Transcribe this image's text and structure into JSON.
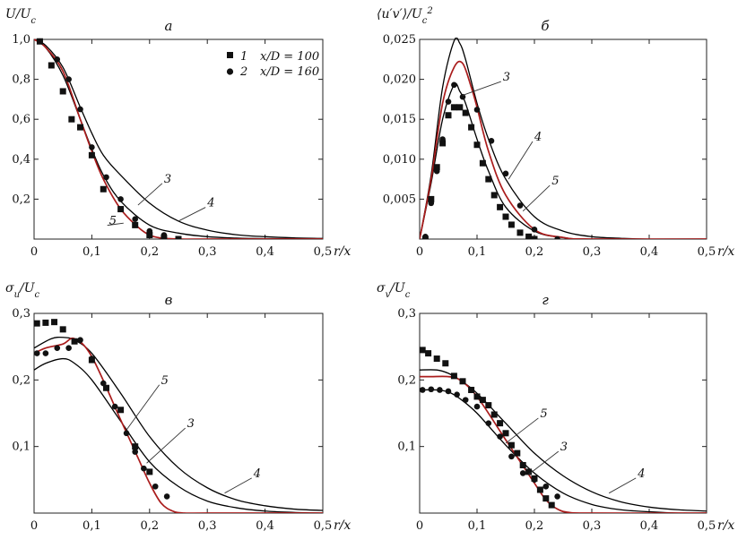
{
  "legend": {
    "entries": [
      {
        "symbol": "square",
        "num": "1",
        "text": "x/D = 100"
      },
      {
        "symbol": "circle",
        "num": "2",
        "text": "x/D = 160"
      }
    ]
  },
  "chart_data": [
    {
      "type": "line",
      "panel": "а",
      "ylabel": "U/Uc",
      "xlabel": "r/x",
      "xlim": [
        0,
        0.5
      ],
      "ylim": [
        0,
        1.0
      ],
      "xticks": [
        0,
        0.1,
        0.2,
        0.3,
        0.4,
        0.5
      ],
      "xtick_labels": [
        "0",
        "0,1",
        "0,2",
        "0,3",
        "0,4",
        "0,5"
      ],
      "yticks": [
        0.2,
        0.4,
        0.6,
        0.8,
        1.0
      ],
      "ytick_labels": [
        "0,2",
        "0,4",
        "0,6",
        "0,8",
        "1,0"
      ],
      "series": [
        {
          "name": "4",
          "color": "#000000",
          "x": [
            0,
            0.02,
            0.05,
            0.08,
            0.1,
            0.12,
            0.15,
            0.2,
            0.25,
            0.3,
            0.35,
            0.4,
            0.45,
            0.5
          ],
          "y": [
            1.0,
            0.97,
            0.86,
            0.66,
            0.53,
            0.42,
            0.32,
            0.18,
            0.09,
            0.045,
            0.022,
            0.012,
            0.006,
            0.003
          ]
        },
        {
          "name": "3",
          "color": "#000000",
          "x": [
            0,
            0.02,
            0.05,
            0.08,
            0.1,
            0.12,
            0.15,
            0.2,
            0.25,
            0.3,
            0.35,
            0.4,
            0.5
          ],
          "y": [
            1.0,
            0.96,
            0.82,
            0.6,
            0.45,
            0.32,
            0.19,
            0.07,
            0.03,
            0.012,
            0.005,
            0.002,
            0.0
          ]
        },
        {
          "name": "5",
          "color": "#aa1c1c",
          "x": [
            0,
            0.02,
            0.05,
            0.08,
            0.1,
            0.12,
            0.15,
            0.18,
            0.2,
            0.22,
            0.25,
            0.3,
            0.5
          ],
          "y": [
            1.0,
            0.96,
            0.84,
            0.6,
            0.44,
            0.3,
            0.15,
            0.06,
            0.02,
            0.005,
            0.0,
            0.0,
            0.0
          ]
        },
        {
          "name": "1",
          "marker": "square",
          "x": [
            0.01,
            0.03,
            0.05,
            0.065,
            0.08,
            0.1,
            0.12,
            0.15,
            0.175,
            0.2,
            0.225,
            0.25
          ],
          "y": [
            0.99,
            0.87,
            0.74,
            0.6,
            0.56,
            0.42,
            0.25,
            0.15,
            0.07,
            0.02,
            0.005,
            0.0
          ]
        },
        {
          "name": "2",
          "marker": "circle",
          "x": [
            0.01,
            0.04,
            0.06,
            0.08,
            0.1,
            0.125,
            0.15,
            0.175,
            0.2,
            0.225
          ],
          "y": [
            0.99,
            0.9,
            0.8,
            0.65,
            0.46,
            0.31,
            0.2,
            0.1,
            0.04,
            0.02
          ]
        }
      ],
      "curve_labels": [
        {
          "text": "3",
          "label_at": [
            0.225,
            0.27
          ],
          "point_at": [
            0.18,
            0.17
          ]
        },
        {
          "text": "4",
          "label_at": [
            0.3,
            0.15
          ],
          "point_at": [
            0.25,
            0.09
          ]
        },
        {
          "text": "5",
          "label_at": [
            0.13,
            0.06
          ],
          "point_at": [
            0.155,
            0.08
          ]
        }
      ]
    },
    {
      "type": "line",
      "panel": "б",
      "ylabel": "⟨u′v′⟩/Uc²",
      "xlabel": "r/x",
      "xlim": [
        0,
        0.5
      ],
      "ylim": [
        0,
        0.025
      ],
      "xticks": [
        0,
        0.1,
        0.2,
        0.3,
        0.4,
        0.5
      ],
      "xtick_labels": [
        "0",
        "0,1",
        "0,2",
        "0,3",
        "0,4",
        "0,5"
      ],
      "yticks": [
        0.005,
        0.01,
        0.015,
        0.02,
        0.025
      ],
      "ytick_labels": [
        "0,005",
        "0,010",
        "0,015",
        "0,020",
        "0,025"
      ],
      "series": [
        {
          "name": "4",
          "color": "#000000",
          "x": [
            0,
            0.02,
            0.04,
            0.06,
            0.07,
            0.08,
            0.1,
            0.12,
            0.15,
            0.2,
            0.25,
            0.3,
            0.35,
            0.4,
            0.5
          ],
          "y": [
            0,
            0.008,
            0.019,
            0.0248,
            0.0245,
            0.0225,
            0.017,
            0.0125,
            0.0075,
            0.0028,
            0.001,
            0.0003,
            0.0001,
            0,
            0
          ]
        },
        {
          "name": "3",
          "color": "#000000",
          "x": [
            0,
            0.02,
            0.04,
            0.06,
            0.07,
            0.08,
            0.1,
            0.12,
            0.15,
            0.2,
            0.25,
            0.3,
            0.5
          ],
          "y": [
            0,
            0.007,
            0.015,
            0.0193,
            0.0185,
            0.017,
            0.0125,
            0.0085,
            0.004,
            0.001,
            0.0002,
            0,
            0
          ]
        },
        {
          "name": "5",
          "color": "#aa1c1c",
          "x": [
            0,
            0.02,
            0.04,
            0.06,
            0.075,
            0.09,
            0.1,
            0.12,
            0.15,
            0.2,
            0.25,
            0.3,
            0.5
          ],
          "y": [
            0,
            0.0075,
            0.017,
            0.0215,
            0.022,
            0.019,
            0.0165,
            0.011,
            0.0055,
            0.0012,
            0.0002,
            0,
            0
          ]
        },
        {
          "name": "1",
          "marker": "square",
          "x": [
            0.01,
            0.02,
            0.03,
            0.04,
            0.05,
            0.06,
            0.07,
            0.08,
            0.09,
            0.1,
            0.11,
            0.12,
            0.13,
            0.14,
            0.15,
            0.16,
            0.175,
            0.19,
            0.2
          ],
          "y": [
            0,
            0.005,
            0.009,
            0.012,
            0.0155,
            0.0165,
            0.0165,
            0.0158,
            0.014,
            0.0118,
            0.0095,
            0.0075,
            0.0055,
            0.004,
            0.0028,
            0.0018,
            0.0008,
            0.0003,
            0
          ]
        },
        {
          "name": "2",
          "marker": "circle",
          "x": [
            0.01,
            0.02,
            0.03,
            0.04,
            0.05,
            0.06,
            0.075,
            0.1,
            0.125,
            0.15,
            0.175,
            0.2,
            0.24
          ],
          "y": [
            0.0003,
            0.0045,
            0.0085,
            0.0125,
            0.0172,
            0.0193,
            0.0178,
            0.0162,
            0.0123,
            0.0082,
            0.0042,
            0.0012,
            0
          ]
        }
      ],
      "curve_labels": [
        {
          "text": "3",
          "label_at": [
            0.145,
            0.0195
          ],
          "point_at": [
            0.075,
            0.018
          ]
        },
        {
          "text": "4",
          "label_at": [
            0.2,
            0.012
          ],
          "point_at": [
            0.155,
            0.0075
          ]
        },
        {
          "text": "5",
          "label_at": [
            0.23,
            0.0065
          ],
          "point_at": [
            0.18,
            0.0035
          ]
        }
      ]
    },
    {
      "type": "line",
      "panel": "в",
      "ylabel": "σu/Uc",
      "xlabel": "r/x",
      "xlim": [
        0,
        0.5
      ],
      "ylim": [
        0,
        0.3
      ],
      "xticks": [
        0,
        0.1,
        0.2,
        0.3,
        0.4,
        0.5
      ],
      "xtick_labels": [
        "0",
        "0,1",
        "0,2",
        "0,3",
        "0,4",
        "0,5"
      ],
      "yticks": [
        0.1,
        0.2,
        0.3
      ],
      "ytick_labels": [
        "0,1",
        "0,2",
        "0,3"
      ],
      "series": [
        {
          "name": "4",
          "color": "#000000",
          "x": [
            0,
            0.03,
            0.05,
            0.07,
            0.1,
            0.15,
            0.2,
            0.25,
            0.3,
            0.35,
            0.4,
            0.45,
            0.5
          ],
          "y": [
            0.248,
            0.262,
            0.264,
            0.26,
            0.24,
            0.18,
            0.115,
            0.068,
            0.038,
            0.02,
            0.011,
            0.006,
            0.004
          ]
        },
        {
          "name": "3",
          "color": "#000000",
          "x": [
            0,
            0.02,
            0.05,
            0.07,
            0.1,
            0.15,
            0.2,
            0.25,
            0.3,
            0.35,
            0.4,
            0.45,
            0.5
          ],
          "y": [
            0.215,
            0.225,
            0.232,
            0.225,
            0.2,
            0.138,
            0.077,
            0.04,
            0.018,
            0.008,
            0.003,
            0.001,
            0
          ]
        },
        {
          "name": "5",
          "color": "#aa1c1c",
          "x": [
            0,
            0.02,
            0.05,
            0.07,
            0.1,
            0.15,
            0.18,
            0.2,
            0.22,
            0.24,
            0.26,
            0.3,
            0.5
          ],
          "y": [
            0.24,
            0.248,
            0.254,
            0.262,
            0.235,
            0.14,
            0.083,
            0.045,
            0.015,
            0.003,
            0,
            0,
            0
          ]
        },
        {
          "name": "1",
          "marker": "square",
          "x": [
            0.005,
            0.02,
            0.035,
            0.05,
            0.07,
            0.1,
            0.125,
            0.15,
            0.175,
            0.2
          ],
          "y": [
            0.285,
            0.286,
            0.287,
            0.276,
            0.258,
            0.23,
            0.188,
            0.155,
            0.1,
            0.062
          ]
        },
        {
          "name": "2",
          "marker": "circle",
          "x": [
            0.005,
            0.02,
            0.04,
            0.06,
            0.08,
            0.1,
            0.12,
            0.14,
            0.16,
            0.175,
            0.19,
            0.21,
            0.23
          ],
          "y": [
            0.24,
            0.24,
            0.248,
            0.248,
            0.26,
            0.232,
            0.195,
            0.16,
            0.12,
            0.092,
            0.067,
            0.04,
            0.025
          ]
        }
      ],
      "curve_labels": [
        {
          "text": "5",
          "label_at": [
            0.22,
            0.19
          ],
          "point_at": [
            0.16,
            0.125
          ]
        },
        {
          "text": "3",
          "label_at": [
            0.265,
            0.125
          ],
          "point_at": [
            0.195,
            0.075
          ]
        },
        {
          "text": "4",
          "label_at": [
            0.38,
            0.05
          ],
          "point_at": [
            0.33,
            0.03
          ]
        }
      ]
    },
    {
      "type": "line",
      "panel": "г",
      "ylabel": "σv/Uc",
      "xlabel": "r/x",
      "xlim": [
        0,
        0.5
      ],
      "ylim": [
        0,
        0.3
      ],
      "xticks": [
        0,
        0.1,
        0.2,
        0.3,
        0.4,
        0.5
      ],
      "xtick_labels": [
        "0",
        "0,1",
        "0,2",
        "0,3",
        "0,4",
        "0,5"
      ],
      "yticks": [
        0.1,
        0.2,
        0.3
      ],
      "ytick_labels": [
        "0,1",
        "0,2",
        "0,3"
      ],
      "series": [
        {
          "name": "4",
          "color": "#000000",
          "x": [
            0,
            0.03,
            0.05,
            0.07,
            0.1,
            0.15,
            0.2,
            0.25,
            0.3,
            0.35,
            0.4,
            0.45,
            0.5
          ],
          "y": [
            0.215,
            0.215,
            0.21,
            0.2,
            0.18,
            0.135,
            0.09,
            0.056,
            0.032,
            0.017,
            0.009,
            0.005,
            0.003
          ]
        },
        {
          "name": "3",
          "color": "#000000",
          "x": [
            0,
            0.03,
            0.05,
            0.07,
            0.1,
            0.15,
            0.2,
            0.25,
            0.3,
            0.35,
            0.4,
            0.45,
            0.5
          ],
          "y": [
            0.185,
            0.185,
            0.182,
            0.172,
            0.15,
            0.102,
            0.06,
            0.03,
            0.013,
            0.005,
            0.002,
            0,
            0
          ]
        },
        {
          "name": "5",
          "color": "#aa1c1c",
          "x": [
            0,
            0.02,
            0.05,
            0.07,
            0.1,
            0.15,
            0.2,
            0.22,
            0.24,
            0.26,
            0.3,
            0.5
          ],
          "y": [
            0.205,
            0.205,
            0.205,
            0.2,
            0.175,
            0.11,
            0.045,
            0.02,
            0.006,
            0.001,
            0,
            0
          ]
        },
        {
          "name": "1",
          "marker": "square",
          "x": [
            0.005,
            0.015,
            0.03,
            0.045,
            0.06,
            0.075,
            0.09,
            0.1,
            0.11,
            0.12,
            0.13,
            0.14,
            0.15,
            0.16,
            0.17,
            0.18,
            0.19,
            0.2,
            0.21,
            0.22,
            0.23
          ],
          "y": [
            0.245,
            0.24,
            0.232,
            0.225,
            0.206,
            0.198,
            0.185,
            0.175,
            0.17,
            0.162,
            0.148,
            0.135,
            0.12,
            0.102,
            0.09,
            0.072,
            0.062,
            0.052,
            0.035,
            0.022,
            0.012
          ]
        },
        {
          "name": "2",
          "marker": "circle",
          "x": [
            0.005,
            0.02,
            0.035,
            0.05,
            0.065,
            0.08,
            0.1,
            0.12,
            0.14,
            0.16,
            0.18,
            0.2,
            0.22,
            0.24
          ],
          "y": [
            0.185,
            0.186,
            0.185,
            0.183,
            0.178,
            0.17,
            0.16,
            0.135,
            0.115,
            0.085,
            0.06,
            0.05,
            0.04,
            0.025
          ]
        }
      ],
      "curve_labels": [
        {
          "text": "5",
          "label_at": [
            0.21,
            0.14
          ],
          "point_at": [
            0.15,
            0.105
          ]
        },
        {
          "text": "3",
          "label_at": [
            0.245,
            0.09
          ],
          "point_at": [
            0.19,
            0.058
          ]
        },
        {
          "text": "4",
          "label_at": [
            0.38,
            0.05
          ],
          "point_at": [
            0.33,
            0.03
          ]
        }
      ]
    }
  ]
}
